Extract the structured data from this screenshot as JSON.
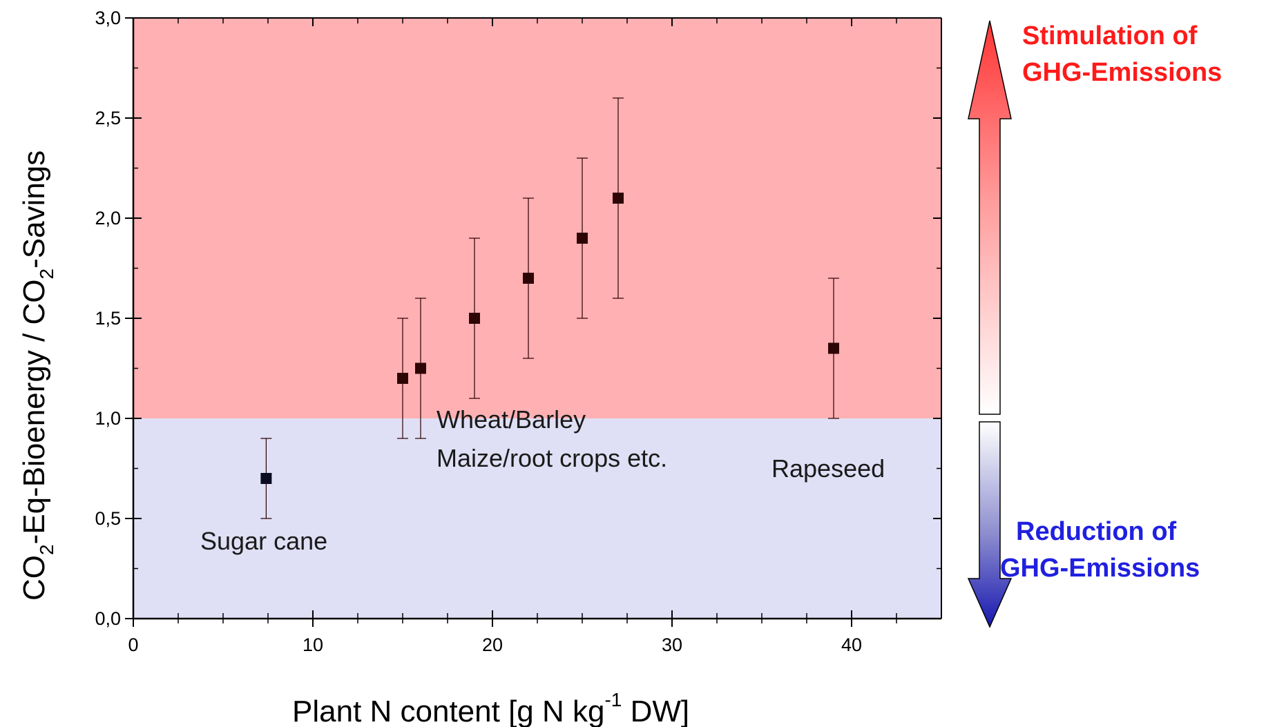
{
  "chart_data": {
    "type": "scatter",
    "xlabel_main": "Plant N content [g N kg",
    "xlabel_sup": "-1",
    "xlabel_tail": " DW]",
    "ylabel_parts": {
      "p1": "CO",
      "sub1": "2",
      "p2": "-Eq-Bioenergy / CO",
      "sub2": "2",
      "p3": "-Savings"
    },
    "xlim": [
      0,
      45
    ],
    "ylim": [
      0,
      3.0
    ],
    "x_ticks": [
      0,
      10,
      20,
      30,
      40
    ],
    "x_tick_labels": [
      "0",
      "10",
      "20",
      "30",
      "40"
    ],
    "y_ticks": [
      0,
      0.5,
      1.0,
      1.5,
      2.0,
      2.5,
      3.0
    ],
    "y_tick_labels": [
      "0,0",
      "0,5",
      "1,0",
      "1,5",
      "2,0",
      "2,5",
      "3,0"
    ],
    "threshold": 1.0,
    "region_colors": {
      "above": "#ffb0b3",
      "below": "#dfdff5"
    },
    "point_color": "#2e0505",
    "points": [
      {
        "x": 7.4,
        "y": 0.7,
        "low": 0.5,
        "high": 0.9
      },
      {
        "x": 15.0,
        "y": 1.2,
        "low": 0.9,
        "high": 1.5
      },
      {
        "x": 16.0,
        "y": 1.25,
        "low": 0.9,
        "high": 1.6
      },
      {
        "x": 19.0,
        "y": 1.5,
        "low": 1.1,
        "high": 1.9
      },
      {
        "x": 22.0,
        "y": 1.7,
        "low": 1.3,
        "high": 2.1
      },
      {
        "x": 25.0,
        "y": 1.9,
        "low": 1.5,
        "high": 2.3
      },
      {
        "x": 27.0,
        "y": 2.1,
        "low": 1.6,
        "high": 2.6
      },
      {
        "x": 39.0,
        "y": 1.35,
        "low": 1.0,
        "high": 1.7
      }
    ],
    "annotations": {
      "sugar_cane": "Sugar cane",
      "wheat_barley": "Wheat/Barley",
      "maize_root": "Maize/root crops etc.",
      "rapeseed": "Rapeseed"
    }
  },
  "arrows": {
    "up_label_1": "Stimulation of",
    "up_label_2": "GHG-Emissions",
    "up_color": "#ff1a1a",
    "down_label_1": "Reduction of",
    "down_label_2": "GHG-Emissions",
    "down_color": "#2020e0"
  }
}
